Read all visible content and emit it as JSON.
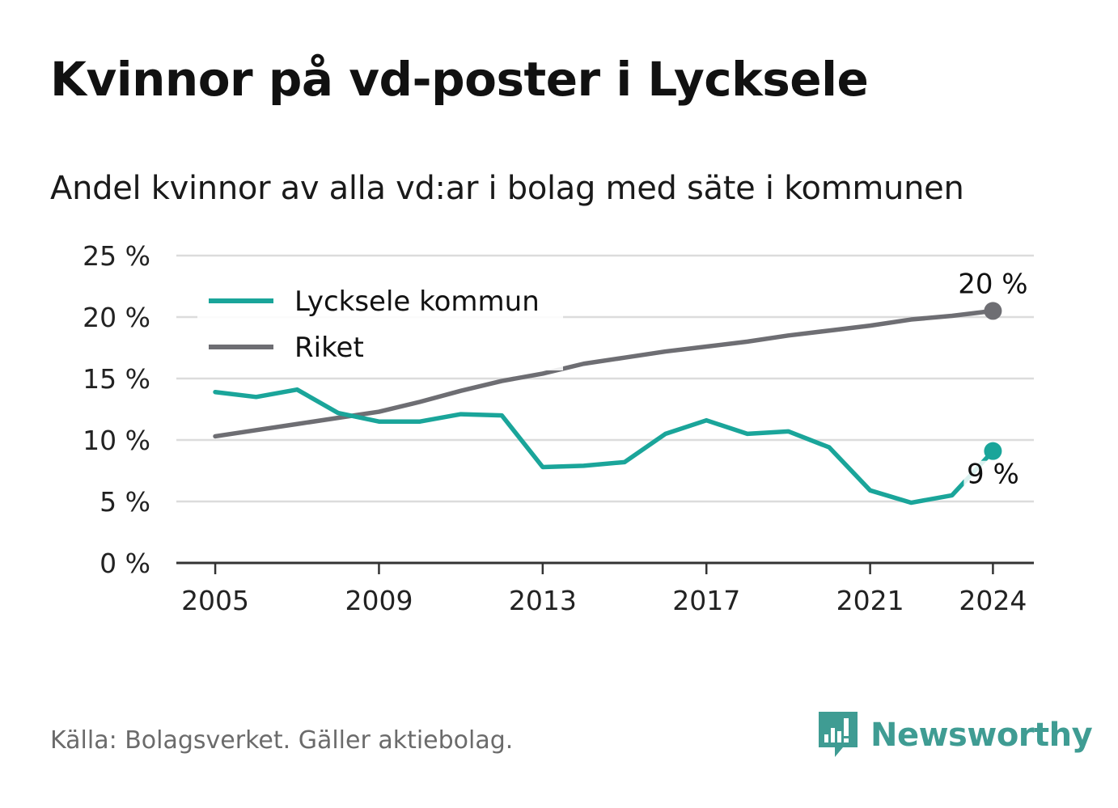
{
  "chart_data": {
    "type": "line",
    "title": "Kvinnor på vd-poster i Lycksele",
    "subtitle": "Andel kvinnor av alla vd:ar i bolag med säte i kommunen",
    "x": [
      2005,
      2006,
      2007,
      2008,
      2009,
      2010,
      2011,
      2012,
      2013,
      2014,
      2015,
      2016,
      2017,
      2018,
      2019,
      2020,
      2021,
      2022,
      2023,
      2024
    ],
    "series": [
      {
        "name": "Lycksele kommun",
        "color": "#1aa59a",
        "values": [
          13.9,
          13.5,
          14.1,
          12.2,
          11.5,
          11.5,
          12.1,
          12.0,
          7.8,
          7.9,
          8.2,
          10.5,
          11.6,
          10.5,
          10.7,
          9.4,
          5.9,
          4.9,
          5.5,
          9.1
        ]
      },
      {
        "name": "Riket",
        "color": "#6e6e73",
        "values": [
          10.3,
          10.8,
          11.3,
          11.8,
          12.3,
          13.1,
          14.0,
          14.8,
          15.4,
          16.2,
          16.7,
          17.2,
          17.6,
          18.0,
          18.5,
          18.9,
          19.3,
          19.8,
          20.1,
          20.5
        ]
      }
    ],
    "ylim": [
      0,
      25
    ],
    "yticks": [
      0,
      5,
      10,
      15,
      20,
      25
    ],
    "ytick_labels": [
      "0 %",
      "5 %",
      "10 %",
      "15 %",
      "20 %",
      "25 %"
    ],
    "xticks": [
      2005,
      2009,
      2013,
      2017,
      2021,
      2024
    ],
    "xtick_labels": [
      "2005",
      "2009",
      "2013",
      "2017",
      "2021",
      "2024"
    ],
    "end_labels": [
      {
        "series": "Riket",
        "text": "20 %"
      },
      {
        "series": "Lycksele kommun",
        "text": "9 %"
      }
    ],
    "legend_placement": "top-left",
    "grid": true,
    "xlabel": "",
    "ylabel": ""
  },
  "footer": {
    "source": "Källa: Bolagsverket. Gäller aktiebolag.",
    "brand": "Newsworthy",
    "brand_icon": "newsworthy-logo-icon",
    "brand_color": "#3f9c93"
  }
}
